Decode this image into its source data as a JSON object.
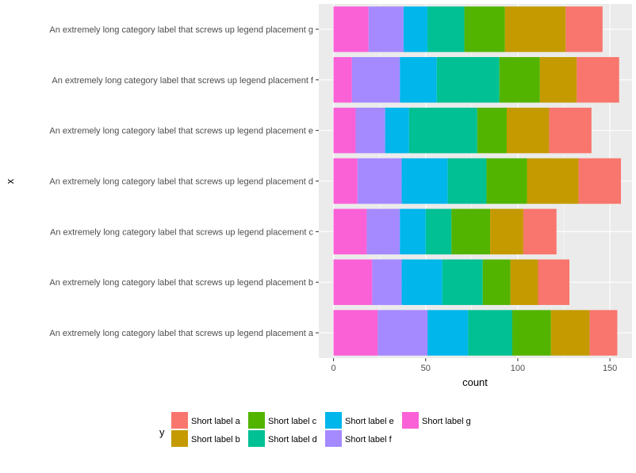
{
  "chart_data": {
    "type": "bar",
    "orientation": "horizontal",
    "stacked": true,
    "xlabel": "count",
    "ylabel": "x",
    "xlim": [
      -8,
      162
    ],
    "xticks": [
      0,
      50,
      100,
      150
    ],
    "grid": true,
    "legend_position": "bottom",
    "legend_title": "y",
    "categories": [
      "An extremely long category label that screws up legend placement a",
      "An extremely long category label that screws up legend placement b",
      "An extremely long category label that screws up legend placement c",
      "An extremely long category label that screws up legend placement d",
      "An extremely long category label that screws up legend placement e",
      "An extremely long category label that screws up legend placement f",
      "An extremely long category label that screws up legend placement g"
    ],
    "stack_order": [
      "Short label g",
      "Short label f",
      "Short label e",
      "Short label d",
      "Short label c",
      "Short label b",
      "Short label a"
    ],
    "series": [
      {
        "name": "Short label a",
        "color": "#F8766D",
        "values": [
          15,
          17,
          18,
          23,
          23,
          23,
          20
        ]
      },
      {
        "name": "Short label b",
        "color": "#C49A00",
        "values": [
          21,
          15,
          18,
          28,
          23,
          20,
          33
        ]
      },
      {
        "name": "Short label c",
        "color": "#53B400",
        "values": [
          21,
          15,
          21,
          22,
          16,
          22,
          22
        ]
      },
      {
        "name": "Short label d",
        "color": "#00C094",
        "values": [
          24,
          22,
          14,
          21,
          37,
          34,
          20
        ]
      },
      {
        "name": "Short label e",
        "color": "#00B6EB",
        "values": [
          22,
          22,
          14,
          25,
          13,
          20,
          13
        ]
      },
      {
        "name": "Short label f",
        "color": "#A58AFF",
        "values": [
          27,
          16,
          18,
          24,
          16,
          26,
          19
        ]
      },
      {
        "name": "Short label g",
        "color": "#FB61D7",
        "values": [
          24,
          21,
          18,
          13,
          12,
          10,
          19
        ]
      }
    ]
  }
}
